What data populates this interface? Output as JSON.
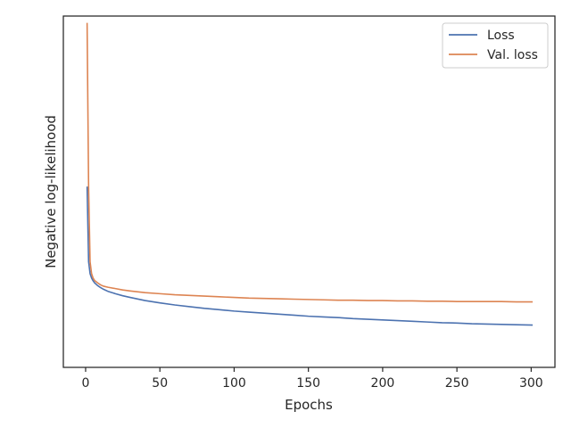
{
  "chart_data": {
    "type": "line",
    "xlabel": "Epochs",
    "ylabel": "Negative log-likelihood",
    "xlim": [
      -15,
      316
    ],
    "xticks": [
      0,
      50,
      100,
      150,
      200,
      250,
      300
    ],
    "xtick_labels": [
      "0",
      "50",
      "100",
      "150",
      "200",
      "250",
      "300"
    ],
    "ylim": [
      -0.03,
      1.0
    ],
    "y_tick_labels_shown": false,
    "grid": false,
    "legend_position": "top-right",
    "series": [
      {
        "name": "Loss",
        "color": "#4c72b0",
        "x": [
          1,
          2,
          3,
          4,
          5,
          6,
          8,
          10,
          12,
          15,
          20,
          25,
          30,
          40,
          50,
          60,
          70,
          80,
          90,
          100,
          110,
          120,
          130,
          140,
          150,
          160,
          170,
          180,
          190,
          200,
          210,
          220,
          230,
          240,
          250,
          260,
          270,
          280,
          290,
          301
        ],
        "y": [
          0.5,
          0.28,
          0.245,
          0.232,
          0.224,
          0.218,
          0.21,
          0.204,
          0.199,
          0.193,
          0.186,
          0.18,
          0.175,
          0.166,
          0.159,
          0.153,
          0.148,
          0.143,
          0.139,
          0.135,
          0.132,
          0.129,
          0.126,
          0.123,
          0.12,
          0.118,
          0.116,
          0.113,
          0.111,
          0.109,
          0.107,
          0.105,
          0.103,
          0.101,
          0.1,
          0.098,
          0.097,
          0.096,
          0.095,
          0.094
        ]
      },
      {
        "name": "Val. loss",
        "color": "#dd8452",
        "x": [
          1,
          2,
          3,
          4,
          5,
          6,
          8,
          10,
          12,
          15,
          20,
          25,
          30,
          40,
          50,
          60,
          70,
          80,
          90,
          100,
          110,
          120,
          130,
          140,
          150,
          160,
          170,
          180,
          190,
          200,
          210,
          220,
          230,
          240,
          250,
          260,
          270,
          280,
          290,
          301
        ],
        "y": [
          0.98,
          0.5,
          0.28,
          0.245,
          0.232,
          0.225,
          0.218,
          0.212,
          0.208,
          0.205,
          0.201,
          0.197,
          0.194,
          0.189,
          0.186,
          0.183,
          0.181,
          0.179,
          0.177,
          0.175,
          0.173,
          0.172,
          0.171,
          0.17,
          0.169,
          0.168,
          0.167,
          0.167,
          0.166,
          0.166,
          0.165,
          0.165,
          0.164,
          0.164,
          0.163,
          0.163,
          0.163,
          0.163,
          0.162,
          0.162
        ]
      }
    ]
  }
}
